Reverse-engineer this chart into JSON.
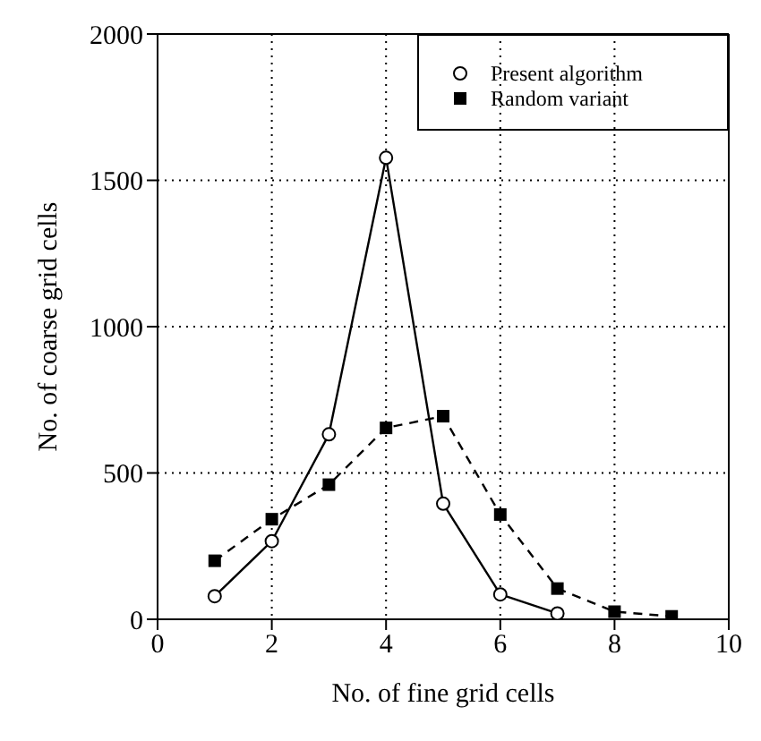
{
  "chart_data": {
    "type": "line",
    "xlabel": "No. of fine grid cells",
    "ylabel": "No. of coarse grid cells",
    "x": [
      1,
      2,
      3,
      4,
      5,
      6,
      7,
      8,
      9
    ],
    "series": [
      {
        "name": "Present algorithm",
        "color": "#000000",
        "marker": "circle",
        "line_style": "solid",
        "values": [
          79,
          267,
          632,
          1577,
          395,
          85,
          20,
          null,
          null
        ]
      },
      {
        "name": "Random variant",
        "color": "#000000",
        "marker": "square",
        "line_style": "dashed",
        "values": [
          200,
          342,
          460,
          654,
          694,
          358,
          105,
          26,
          10
        ]
      }
    ],
    "xlim": [
      0,
      10
    ],
    "xticks": [
      0,
      2,
      4,
      6,
      8,
      10
    ],
    "ylim": [
      0,
      2000
    ],
    "yticks": [
      0,
      500,
      1000,
      1500,
      2000
    ],
    "grid": true,
    "legend": "top right"
  }
}
